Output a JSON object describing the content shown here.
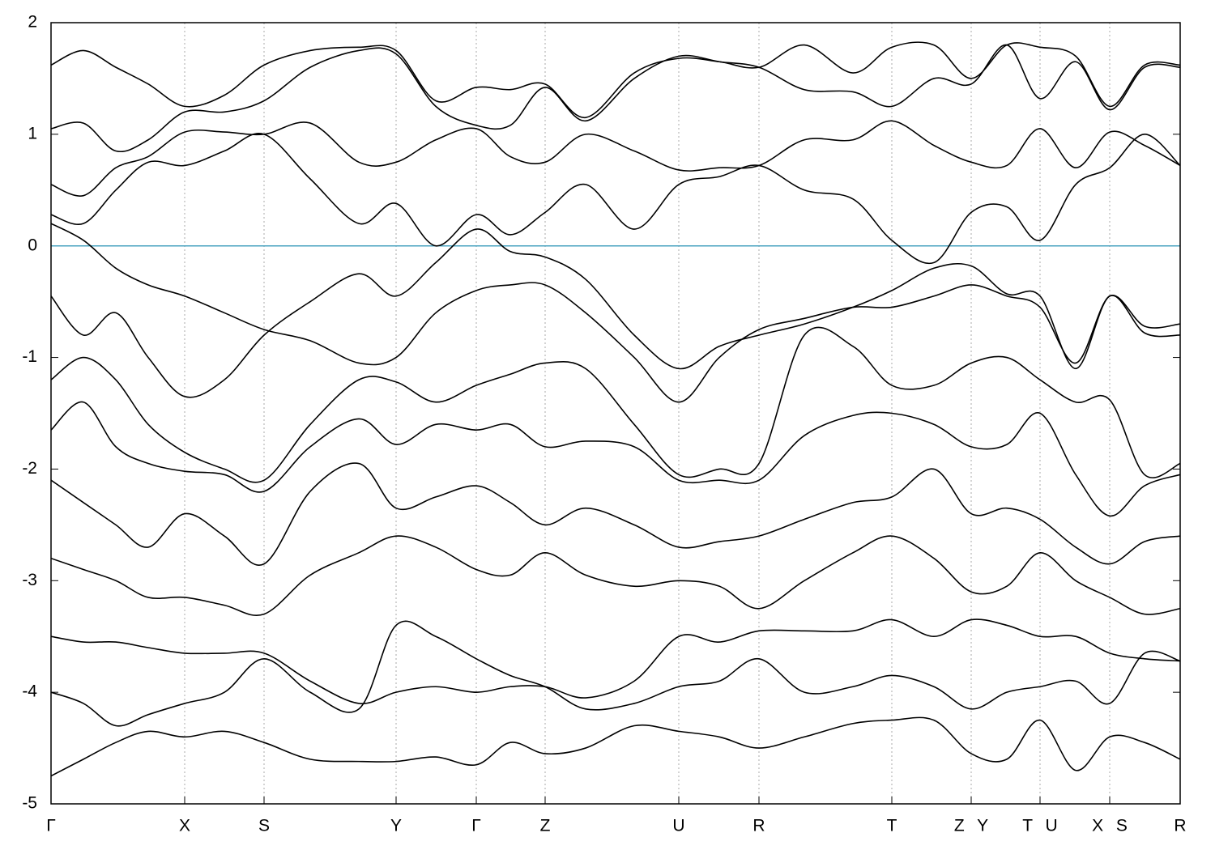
{
  "chart_data": {
    "type": "line",
    "xlim": [
      0,
      1394
    ],
    "ylim": [
      -5,
      2
    ],
    "yticks": [
      -5,
      -4,
      -3,
      -2,
      -1,
      0,
      1,
      2
    ],
    "xticks": [
      {
        "value": 0,
        "label": "Γ"
      },
      {
        "value": 165,
        "label": "X"
      },
      {
        "value": 263,
        "label": "S"
      },
      {
        "value": 426,
        "label": "Y"
      },
      {
        "value": 525,
        "label": "Γ"
      },
      {
        "value": 610,
        "label": "Z"
      },
      {
        "value": 775,
        "label": "U"
      },
      {
        "value": 874,
        "label": "R"
      },
      {
        "value": 1038,
        "label": "T"
      },
      {
        "value": 1136,
        "label": "Z Y"
      },
      {
        "value": 1221,
        "label": "T U"
      },
      {
        "value": 1307,
        "label": "X S"
      },
      {
        "value": 1394,
        "label": "R"
      }
    ],
    "grid": true,
    "color": "#000000",
    "fermi_level": 0,
    "fermi_color": "#4aa3c0",
    "x": [
      0,
      40,
      80,
      120,
      165,
      214,
      263,
      320,
      380,
      426,
      475,
      525,
      567,
      610,
      660,
      720,
      775,
      825,
      874,
      930,
      990,
      1038,
      1090,
      1136,
      1180,
      1221,
      1265,
      1307,
      1350,
      1394
    ],
    "series": [
      {
        "values": [
          0.2,
          0.05,
          -0.2,
          -0.35,
          -0.45,
          -0.6,
          -0.75,
          -0.85,
          -1.05,
          -1.0,
          -0.6,
          -0.4,
          -0.35,
          -0.35,
          -0.6,
          -1.0,
          -1.4,
          -1.0,
          -0.75,
          -0.65,
          -0.55,
          -0.55,
          -0.45,
          -0.35,
          -0.45,
          -0.55,
          -1.05,
          -0.45,
          -0.72,
          -0.7
        ]
      },
      {
        "values": [
          -0.45,
          -0.8,
          -0.6,
          -1.0,
          -1.35,
          -1.2,
          -0.8,
          -0.5,
          -0.25,
          -0.45,
          -0.15,
          0.15,
          -0.05,
          -0.1,
          -0.3,
          -0.8,
          -1.1,
          -0.9,
          -0.8,
          -0.7,
          -0.55,
          -0.4,
          -0.2,
          -0.18,
          -0.43,
          -0.45,
          -1.1,
          -0.45,
          -0.78,
          -0.8
        ]
      },
      {
        "values": [
          0.28,
          0.2,
          0.5,
          0.75,
          0.72,
          0.85,
          1.0,
          0.6,
          0.2,
          0.38,
          0.0,
          0.28,
          0.1,
          0.3,
          0.55,
          0.15,
          0.55,
          0.62,
          0.72,
          0.5,
          0.42,
          0.05,
          -0.15,
          0.3,
          0.35,
          0.05,
          0.55,
          0.7,
          1.0,
          0.72
        ]
      },
      {
        "values": [
          0.55,
          0.45,
          0.7,
          0.8,
          1.02,
          1.02,
          1.0,
          1.1,
          0.75,
          0.75,
          0.95,
          1.05,
          0.8,
          0.75,
          1.0,
          0.85,
          0.68,
          0.7,
          0.72,
          0.95,
          0.95,
          1.12,
          0.9,
          0.75,
          0.72,
          1.05,
          0.7,
          1.02,
          0.9,
          0.72
        ]
      },
      {
        "values": [
          1.62,
          1.75,
          1.6,
          1.45,
          1.25,
          1.35,
          1.62,
          1.75,
          1.78,
          1.75,
          1.3,
          1.42,
          1.4,
          1.45,
          1.15,
          1.55,
          1.68,
          1.65,
          1.6,
          1.8,
          1.55,
          1.78,
          1.8,
          1.5,
          1.8,
          1.78,
          1.7,
          1.25,
          1.62,
          1.62
        ]
      },
      {
        "values": [
          1.05,
          1.1,
          0.85,
          0.95,
          1.2,
          1.2,
          1.3,
          1.6,
          1.75,
          1.72,
          1.25,
          1.08,
          1.08,
          1.42,
          1.12,
          1.5,
          1.7,
          1.65,
          1.6,
          1.4,
          1.38,
          1.25,
          1.5,
          1.45,
          1.8,
          1.32,
          1.65,
          1.22,
          1.6,
          1.6
        ]
      },
      {
        "values": [
          -1.2,
          -1.0,
          -1.2,
          -1.6,
          -1.85,
          -2.0,
          -2.1,
          -1.6,
          -1.2,
          -1.22,
          -1.4,
          -1.25,
          -1.15,
          -1.05,
          -1.1,
          -1.6,
          -2.05,
          -2.0,
          -1.95,
          -0.8,
          -0.9,
          -1.25,
          -1.25,
          -1.05,
          -1.0,
          -1.2,
          -1.4,
          -1.38,
          -2.05,
          -1.95
        ]
      },
      {
        "values": [
          -1.65,
          -1.4,
          -1.8,
          -1.95,
          -2.02,
          -2.05,
          -2.2,
          -1.8,
          -1.55,
          -1.78,
          -1.6,
          -1.65,
          -1.6,
          -1.8,
          -1.75,
          -1.8,
          -2.1,
          -2.1,
          -2.1,
          -1.7,
          -1.52,
          -1.5,
          -1.6,
          -1.8,
          -1.78,
          -1.5,
          -2.05,
          -2.42,
          -2.15,
          -2.05
        ]
      },
      {
        "values": [
          -2.1,
          -2.3,
          -2.5,
          -2.7,
          -2.4,
          -2.6,
          -2.85,
          -2.2,
          -1.95,
          -2.35,
          -2.25,
          -2.15,
          -2.3,
          -2.5,
          -2.35,
          -2.5,
          -2.7,
          -2.65,
          -2.6,
          -2.45,
          -2.3,
          -2.25,
          -2.0,
          -2.4,
          -2.35,
          -2.45,
          -2.7,
          -2.85,
          -2.65,
          -2.6
        ]
      },
      {
        "values": [
          -2.8,
          -2.9,
          -3.0,
          -3.15,
          -3.15,
          -3.22,
          -3.3,
          -2.95,
          -2.75,
          -2.6,
          -2.7,
          -2.9,
          -2.95,
          -2.75,
          -2.95,
          -3.05,
          -3.0,
          -3.05,
          -3.25,
          -3.0,
          -2.75,
          -2.6,
          -2.8,
          -3.1,
          -3.05,
          -2.75,
          -3.0,
          -3.15,
          -3.3,
          -3.25
        ]
      },
      {
        "values": [
          -3.5,
          -3.55,
          -3.55,
          -3.6,
          -3.65,
          -3.65,
          -3.65,
          -3.9,
          -4.1,
          -4.0,
          -3.95,
          -4.0,
          -3.95,
          -3.95,
          -4.05,
          -3.9,
          -3.5,
          -3.55,
          -3.45,
          -3.45,
          -3.45,
          -3.35,
          -3.5,
          -3.35,
          -3.4,
          -3.5,
          -3.5,
          -3.65,
          -3.7,
          -3.72
        ]
      },
      {
        "values": [
          -4.0,
          -4.1,
          -4.3,
          -4.2,
          -4.1,
          -4.0,
          -3.7,
          -4.0,
          -4.15,
          -3.4,
          -3.5,
          -3.7,
          -3.85,
          -3.95,
          -4.15,
          -4.1,
          -3.95,
          -3.9,
          -3.7,
          -4.0,
          -3.95,
          -3.85,
          -3.95,
          -4.15,
          -4.0,
          -3.95,
          -3.9,
          -4.1,
          -3.65,
          -3.72
        ]
      },
      {
        "values": [
          -4.75,
          -4.6,
          -4.45,
          -4.35,
          -4.4,
          -4.35,
          -4.45,
          -4.6,
          -4.62,
          -4.62,
          -4.58,
          -4.65,
          -4.45,
          -4.55,
          -4.5,
          -4.3,
          -4.35,
          -4.4,
          -4.5,
          -4.4,
          -4.28,
          -4.25,
          -4.25,
          -4.55,
          -4.6,
          -4.25,
          -4.7,
          -4.4,
          -4.45,
          -4.6
        ]
      }
    ]
  }
}
